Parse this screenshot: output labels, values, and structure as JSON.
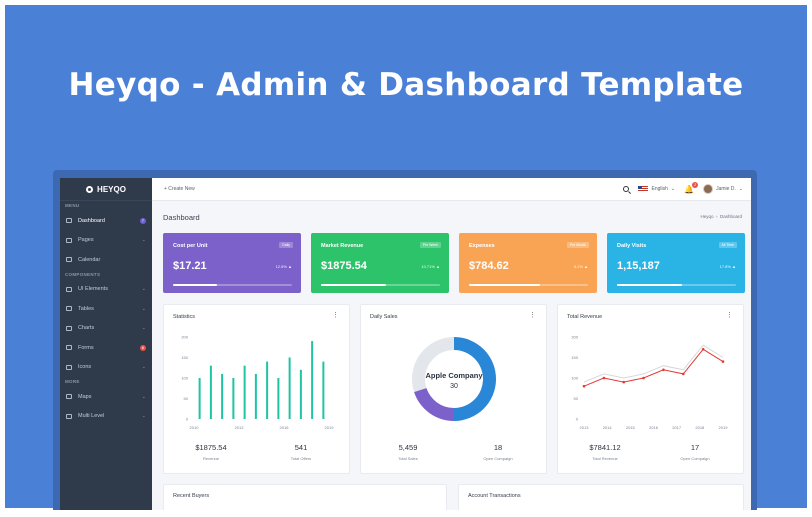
{
  "promo": {
    "title": "Heyqo - Admin & Dashboard Template"
  },
  "sidebar": {
    "brand": "HEYQO",
    "sections": [
      {
        "title": "MENU",
        "items": [
          {
            "label": "Dashboard",
            "badge": "7",
            "badge_color": "#6f5fd0",
            "active": true
          },
          {
            "label": "Pages",
            "chevron": true
          },
          {
            "label": "Calendar"
          }
        ]
      },
      {
        "title": "COMPONENTS",
        "items": [
          {
            "label": "UI Elements",
            "chevron": true
          },
          {
            "label": "Tables",
            "chevron": true
          },
          {
            "label": "Charts",
            "chevron": true
          },
          {
            "label": "Forms",
            "badge": "6",
            "badge_color": "#e8534b"
          },
          {
            "label": "Icons",
            "chevron": true
          }
        ]
      },
      {
        "title": "MORE",
        "items": [
          {
            "label": "Maps",
            "chevron": true
          },
          {
            "label": "Multi Level",
            "chevron": true
          }
        ]
      }
    ]
  },
  "topbar": {
    "create_label": "+ Create New",
    "language": "English",
    "notifications": "2",
    "user": "Jamie D."
  },
  "page": {
    "title": "Dashboard",
    "breadcrumb": [
      "Heyqo",
      "Dashboard"
    ]
  },
  "kpis": [
    {
      "title": "Cost per Unit",
      "badge": "Daily",
      "value": "$17.21",
      "change": "12.5% ▲",
      "progress": 0.37,
      "color": "#7b61c9"
    },
    {
      "title": "Market Revenue",
      "badge": "Per Week",
      "value": "$1875.54",
      "change": "10.71% ▲",
      "progress": 0.55,
      "color": "#2cc36b"
    },
    {
      "title": "Expenses",
      "badge": "Per Month",
      "value": "$784.62",
      "change": "5.1% ▲",
      "progress": 0.6,
      "color": "#f9a455"
    },
    {
      "title": "Daily Visits",
      "badge": "All Time",
      "value": "1,15,187",
      "change": "17.8% ▲",
      "progress": 0.55,
      "color": "#2ab4e6"
    }
  ],
  "cards": {
    "statistics": {
      "title": "Statistics",
      "stats": [
        {
          "value": "$1875.54",
          "label": "Revenue"
        },
        {
          "value": "541",
          "label": "Total Offers"
        }
      ]
    },
    "daily_sales": {
      "title": "Daily Sales",
      "stats": [
        {
          "value": "5,459",
          "label": "Total Sales"
        },
        {
          "value": "18",
          "label": "Open Compaign"
        }
      ]
    },
    "total_revenue": {
      "title": "Total Revenue",
      "stats": [
        {
          "value": "$7841.12",
          "label": "Total Revenue"
        },
        {
          "value": "17",
          "label": "Open Compaign"
        }
      ]
    },
    "recent_buyers": {
      "title": "Recent Buyers"
    },
    "account_transactions": {
      "title": "Account Transactions"
    }
  },
  "chart_data": [
    {
      "type": "bar",
      "x_ticks": [
        "2010",
        "2013",
        "2016",
        "2019"
      ],
      "y_ticks": [
        0,
        50,
        100,
        150,
        200
      ],
      "ylim": [
        0,
        200
      ],
      "values": [
        100,
        130,
        110,
        100,
        130,
        110,
        140,
        100,
        150,
        120,
        190,
        140
      ],
      "color": "#1fc4a3"
    },
    {
      "type": "pie",
      "center_label": "Apple Company",
      "center_value": "30",
      "slices": [
        {
          "value": 50,
          "color": "#2a86d6"
        },
        {
          "value": 20,
          "color": "#7b61c9"
        },
        {
          "value": 30,
          "color": "#e3e6eb"
        }
      ]
    },
    {
      "type": "line",
      "x_ticks": [
        "2013",
        "2014",
        "2015",
        "2016",
        "2017",
        "2018",
        "2019"
      ],
      "y_ticks": [
        0,
        50,
        100,
        150,
        200
      ],
      "ylim": [
        0,
        200
      ],
      "series": [
        {
          "values": [
            80,
            100,
            90,
            100,
            120,
            110,
            170,
            140
          ],
          "color": "#e53935"
        },
        {
          "values": [
            90,
            110,
            100,
            110,
            130,
            120,
            180,
            150
          ],
          "color": "#d5d8de"
        }
      ]
    }
  ]
}
